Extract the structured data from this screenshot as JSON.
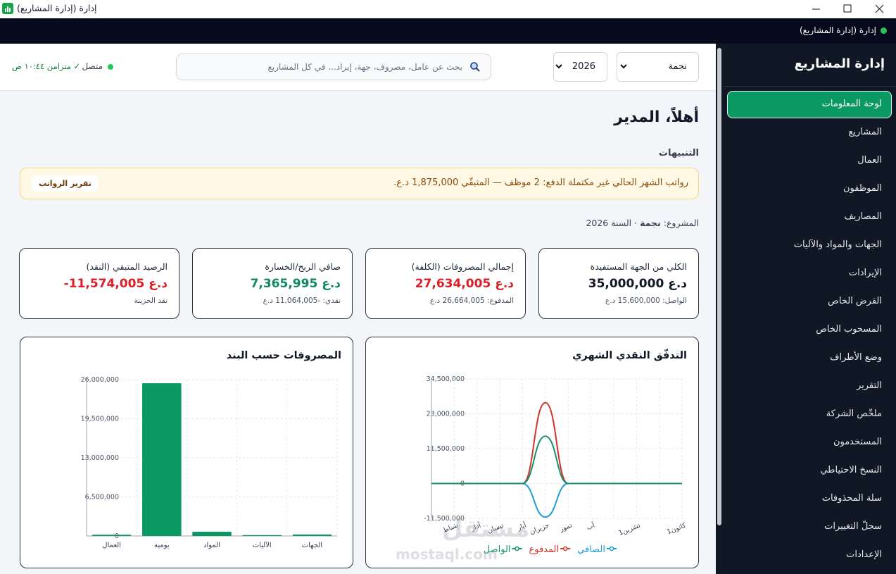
{
  "window": {
    "title": "إدارة (إدارة المشاريع)"
  },
  "topbar": {
    "app": "إدارة (إدارة المشاريع)"
  },
  "sidebar": {
    "title": "إدارة المشاريع",
    "active": 0,
    "items": [
      "لوحة المعلومات",
      "المشاريع",
      "العمال",
      "الموظفون",
      "المصاريف",
      "الجهات والمواد والآليات",
      "الإيرادات",
      "القرض الخاص",
      "المسحوب الخاص",
      "وضع الأطراف",
      "التقرير",
      "ملخّص الشركة",
      "المستخدمون",
      "النسخ الاحتياطي",
      "سلة المحذوفات",
      "سجلّ التغييرات",
      "الإعدادات"
    ]
  },
  "header": {
    "project": "نجمة",
    "year": "2026",
    "search_placeholder": "بحث عن عامل، مصروف، جهة، إيراد... في كل المشاريع",
    "status": "متصل",
    "sync": "✓ متزامن ١٠:٤٤ ص"
  },
  "greeting": "أهلاً، المدير",
  "alerts": {
    "title": "التنبيهات",
    "items": [
      {
        "text": "رواتب الشهر الحالي غير مكتملة الدفع: 2 موظف — المتبقّي 1,875,000 د.ع.",
        "action": "تقرير الرواتب"
      }
    ]
  },
  "project_line": {
    "label": "المشروع:",
    "name": "نجمة",
    "year": "· السنة 2026"
  },
  "cards": [
    {
      "title": "الكلي من الجهة المستفيدة",
      "value": "35,000,000 د.ع",
      "sub": "الواصل: 15,600,000 د.ع",
      "color": "#111827"
    },
    {
      "title": "إجمالي المصروفات (الكلفة)",
      "value": "27,634,005 د.ع",
      "sub": "المدفوع: 26,664,005 د.ع",
      "color": "#dc1f26"
    },
    {
      "title": "صافي الربح/الخسارة",
      "value": "7,365,995 د.ع",
      "sub": "نقدي: -11,064,005 د.ع",
      "color": "#0f8a5f"
    },
    {
      "title": "الرصيد المتبقي (النقد)",
      "value": "-11,574,005 د.ع",
      "sub": "نقد الخزينة",
      "color": "#dc1f26"
    }
  ],
  "chart_data": [
    {
      "type": "line",
      "title": "التدفّق النقدي الشهري",
      "categories": [
        "كانون1",
        null,
        "تشرين1",
        null,
        "آب",
        "تموز",
        "حزيران",
        "أيار",
        "نيسان",
        "آذار",
        "شباط",
        null
      ],
      "series": [
        {
          "name": "الصافي",
          "color": "#1e9ad6",
          "values": [
            0,
            0,
            0,
            0,
            0,
            0,
            -11064005,
            0,
            0,
            0,
            0,
            0
          ]
        },
        {
          "name": "المدفوع",
          "color": "#d1342b",
          "values": [
            0,
            0,
            0,
            0,
            0,
            0,
            26664005,
            0,
            0,
            0,
            0,
            0
          ]
        },
        {
          "name": "الواصل",
          "color": "#15916a",
          "values": [
            0,
            0,
            0,
            0,
            0,
            0,
            15600000,
            0,
            0,
            0,
            0,
            0
          ]
        }
      ],
      "ylim": [
        -11500000,
        34500000
      ],
      "yticks": [
        {
          "value": -11500000,
          "label": "-11,500,000"
        },
        0,
        {
          "value": 11500000,
          "label": "11,500,000"
        },
        {
          "value": 23000000,
          "label": "23,000,000"
        },
        {
          "value": 34500000,
          "label": "34,500,000"
        }
      ],
      "grid": true
    },
    {
      "type": "bar",
      "title": "المصروفات حسب البند",
      "categories": [
        "العمال",
        "يومية",
        "المواد",
        "الآليات",
        "الجهات"
      ],
      "values": [
        200000,
        25400000,
        700000,
        150000,
        250000
      ],
      "color": "#0a9963",
      "ylim": [
        0,
        26000000
      ],
      "yticks": [
        0,
        {
          "value": 6500000,
          "label": "6,500,000"
        },
        {
          "value": 13000000,
          "label": "13,000,000"
        },
        {
          "value": 19500000,
          "label": "19,500,000"
        },
        {
          "value": 26000000,
          "label": "26,000,000"
        }
      ],
      "grid": true
    }
  ],
  "watermark": {
    "ar": "مستقل",
    "en": "mostaql.com"
  }
}
